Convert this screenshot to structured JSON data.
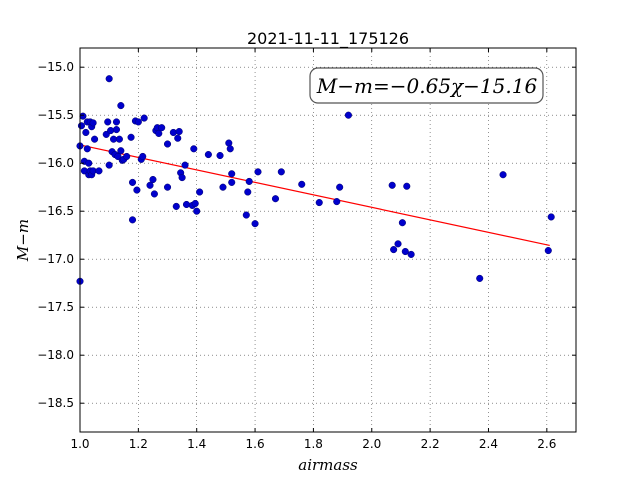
{
  "chart_data": {
    "type": "scatter",
    "title": "2021-11-11_175126",
    "xlabel": "airmass",
    "ylabel": "M−m",
    "xlim": [
      1.0,
      2.7
    ],
    "ylim": [
      -18.8,
      -14.8
    ],
    "y_inverted": true,
    "xticks": [
      1.0,
      1.2,
      1.4,
      1.6,
      1.8,
      2.0,
      2.2,
      2.4,
      2.6
    ],
    "xtick_labels": [
      "1.0",
      "1.2",
      "1.4",
      "1.6",
      "1.8",
      "2.0",
      "2.2",
      "2.4",
      "2.6"
    ],
    "yticks": [
      -15.0,
      -15.5,
      -16.0,
      -16.5,
      -17.0,
      -17.5,
      -18.0,
      -18.5
    ],
    "ytick_labels": [
      "−15.0",
      "−15.5",
      "−16.0",
      "−16.5",
      "−17.0",
      "−17.5",
      "−18.0",
      "−18.5"
    ],
    "grid": true,
    "annotation": "M−m=−0.65χ−15.16",
    "annotation_placement": "top-right",
    "fit": {
      "slope": -0.65,
      "intercept": -15.16,
      "x_range": [
        1.0,
        2.61
      ],
      "color": "#ff0000"
    },
    "point_color": "#0000cc",
    "points": [
      [
        1.0,
        -17.23
      ],
      [
        1.0,
        -15.82
      ],
      [
        1.005,
        -15.61
      ],
      [
        1.01,
        -15.51
      ],
      [
        1.015,
        -15.98
      ],
      [
        1.015,
        -16.08
      ],
      [
        1.02,
        -15.68
      ],
      [
        1.025,
        -15.57
      ],
      [
        1.025,
        -15.85
      ],
      [
        1.03,
        -16.0
      ],
      [
        1.03,
        -16.12
      ],
      [
        1.035,
        -15.57
      ],
      [
        1.035,
        -16.08
      ],
      [
        1.04,
        -16.12
      ],
      [
        1.04,
        -15.62
      ],
      [
        1.045,
        -15.58
      ],
      [
        1.045,
        -16.08
      ],
      [
        1.05,
        -15.75
      ],
      [
        1.065,
        -16.08
      ],
      [
        1.09,
        -15.7
      ],
      [
        1.095,
        -15.57
      ],
      [
        1.1,
        -15.12
      ],
      [
        1.1,
        -16.02
      ],
      [
        1.105,
        -15.66
      ],
      [
        1.11,
        -15.88
      ],
      [
        1.115,
        -15.75
      ],
      [
        1.12,
        -15.91
      ],
      [
        1.125,
        -15.57
      ],
      [
        1.125,
        -15.65
      ],
      [
        1.13,
        -15.93
      ],
      [
        1.135,
        -15.75
      ],
      [
        1.14,
        -15.4
      ],
      [
        1.14,
        -15.87
      ],
      [
        1.145,
        -15.97
      ],
      [
        1.15,
        -15.96
      ],
      [
        1.16,
        -15.93
      ],
      [
        1.175,
        -15.73
      ],
      [
        1.18,
        -16.2
      ],
      [
        1.18,
        -16.59
      ],
      [
        1.19,
        -15.56
      ],
      [
        1.195,
        -16.28
      ],
      [
        1.2,
        -15.57
      ],
      [
        1.21,
        -15.96
      ],
      [
        1.215,
        -15.93
      ],
      [
        1.22,
        -15.53
      ],
      [
        1.24,
        -16.23
      ],
      [
        1.25,
        -16.17
      ],
      [
        1.255,
        -16.32
      ],
      [
        1.26,
        -15.66
      ],
      [
        1.265,
        -15.63
      ],
      [
        1.27,
        -15.69
      ],
      [
        1.28,
        -15.63
      ],
      [
        1.3,
        -15.8
      ],
      [
        1.3,
        -16.25
      ],
      [
        1.32,
        -15.68
      ],
      [
        1.33,
        -16.45
      ],
      [
        1.335,
        -15.74
      ],
      [
        1.34,
        -15.67
      ],
      [
        1.345,
        -16.1
      ],
      [
        1.35,
        -16.15
      ],
      [
        1.36,
        -16.02
      ],
      [
        1.365,
        -16.43
      ],
      [
        1.385,
        -16.44
      ],
      [
        1.39,
        -15.85
      ],
      [
        1.395,
        -16.42
      ],
      [
        1.4,
        -16.5
      ],
      [
        1.41,
        -16.3
      ],
      [
        1.44,
        -15.91
      ],
      [
        1.48,
        -15.92
      ],
      [
        1.49,
        -16.25
      ],
      [
        1.51,
        -15.79
      ],
      [
        1.515,
        -15.85
      ],
      [
        1.52,
        -16.11
      ],
      [
        1.52,
        -16.2
      ],
      [
        1.57,
        -16.54
      ],
      [
        1.575,
        -16.3
      ],
      [
        1.58,
        -16.19
      ],
      [
        1.6,
        -16.63
      ],
      [
        1.61,
        -16.09
      ],
      [
        1.67,
        -16.37
      ],
      [
        1.69,
        -16.09
      ],
      [
        1.76,
        -16.22
      ],
      [
        1.82,
        -16.41
      ],
      [
        1.88,
        -16.4
      ],
      [
        1.89,
        -16.25
      ],
      [
        1.92,
        -15.5
      ],
      [
        2.07,
        -16.23
      ],
      [
        2.075,
        -16.9
      ],
      [
        2.09,
        -16.84
      ],
      [
        2.105,
        -16.62
      ],
      [
        2.115,
        -16.92
      ],
      [
        2.12,
        -16.24
      ],
      [
        2.135,
        -16.95
      ],
      [
        2.37,
        -17.2
      ],
      [
        2.45,
        -16.12
      ],
      [
        2.605,
        -16.91
      ],
      [
        2.615,
        -16.56
      ]
    ]
  }
}
